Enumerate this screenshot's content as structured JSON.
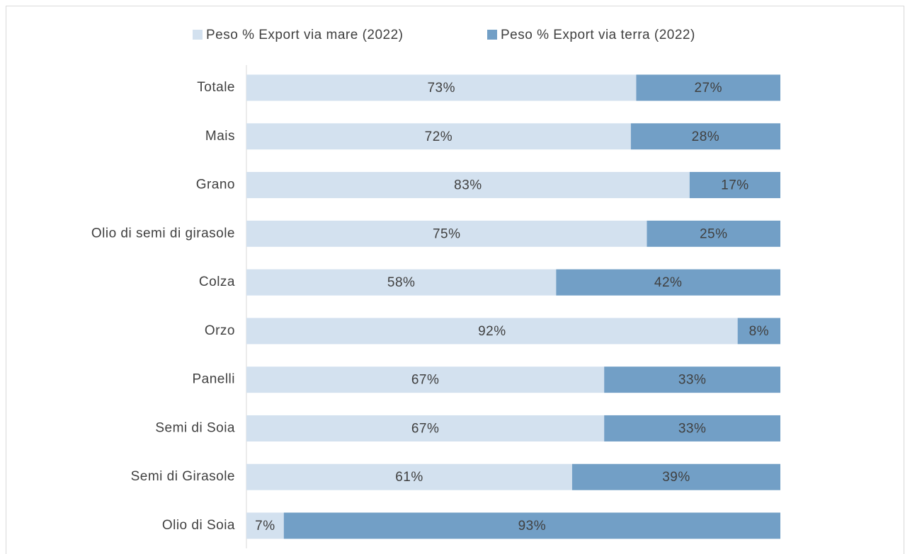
{
  "chart_data": {
    "type": "stacked_bar_horizontal",
    "categories": [
      "Totale",
      "Mais",
      "Grano",
      "Olio di semi di girasole",
      "Colza",
      "Orzo",
      "Panelli",
      "Semi di Soia",
      "Semi di Girasole",
      "Olio di Soia"
    ],
    "series": [
      {
        "name": "Peso % Export via mare (2022)",
        "color": "#d3e1ef",
        "values": [
          73,
          72,
          83,
          75,
          58,
          92,
          67,
          67,
          61,
          7
        ],
        "value_labels": [
          "73%",
          "72%",
          "83%",
          "75%",
          "58%",
          "92%",
          "67%",
          "67%",
          "61%",
          "7%"
        ]
      },
      {
        "name": "Peso % Export via terra (2022)",
        "color": "#729fc6",
        "values": [
          27,
          28,
          17,
          25,
          42,
          8,
          33,
          33,
          39,
          93
        ],
        "value_labels": [
          "27%",
          "28%",
          "17%",
          "25%",
          "42%",
          "8%",
          "33%",
          "33%",
          "39%",
          "93%"
        ]
      }
    ],
    "xlim": [
      0,
      100
    ],
    "legend": "top"
  }
}
